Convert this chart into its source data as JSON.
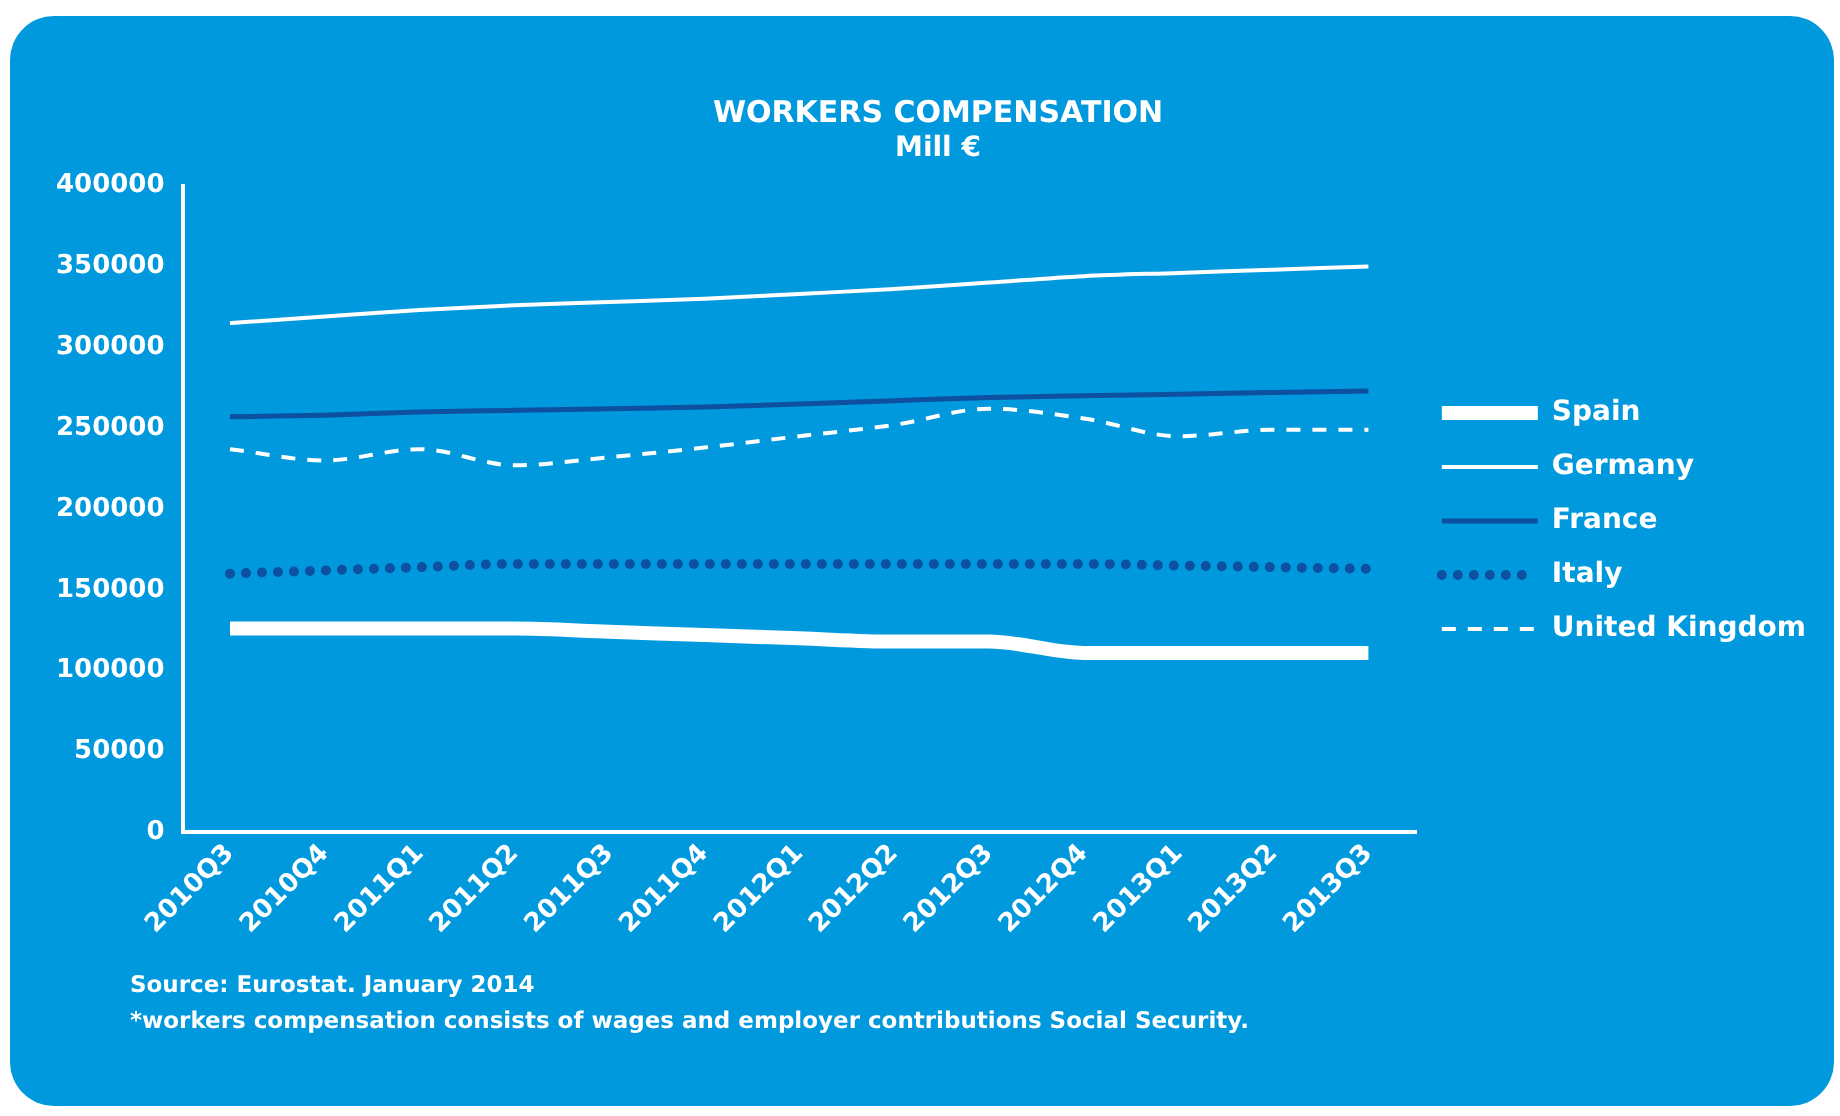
{
  "chart_data": {
    "type": "line",
    "title": "WORKERS COMPENSATION",
    "subtitle": "Mill €",
    "categories": [
      "2010Q3",
      "2010Q4",
      "2011Q1",
      "2011Q2",
      "2011Q3",
      "2011Q4",
      "2012Q1",
      "2012Q2",
      "2012Q3",
      "2012Q4",
      "2013Q1",
      "2013Q2",
      "2013Q3"
    ],
    "series": [
      {
        "name": "Spain",
        "color": "#ffffff",
        "line_style": "solid",
        "values": [
          126000,
          126000,
          126000,
          126000,
          124000,
          122000,
          120000,
          118000,
          118000,
          111000,
          111000,
          111000,
          111000
        ]
      },
      {
        "name": "Germany",
        "color": "#ffffff",
        "line_style": "solid",
        "values": [
          315000,
          319000,
          323000,
          326000,
          328000,
          330000,
          333000,
          336000,
          340000,
          344000,
          346000,
          348000,
          350000
        ]
      },
      {
        "name": "France",
        "color": "#0d4fa0",
        "line_style": "solid",
        "values": [
          257000,
          258000,
          260000,
          261000,
          262000,
          263000,
          265000,
          267000,
          269000,
          270000,
          271000,
          272000,
          273000
        ]
      },
      {
        "name": "Italy",
        "color": "#0d4fa0",
        "line_style": "dotted",
        "values": [
          160000,
          162000,
          164000,
          166000,
          166000,
          166000,
          166000,
          166000,
          166000,
          166000,
          165000,
          164000,
          163000
        ]
      },
      {
        "name": "United Kingdom",
        "color": "#ffffff",
        "line_style": "dashed",
        "values": [
          237000,
          230000,
          237000,
          227000,
          232000,
          238000,
          245000,
          252000,
          262000,
          256000,
          245000,
          249000,
          249000
        ]
      }
    ],
    "ylim": [
      0,
      400000
    ],
    "yticks": [
      0,
      50000,
      100000,
      150000,
      200000,
      250000,
      300000,
      350000,
      400000
    ],
    "grid": false,
    "legend": "right",
    "marker": "none",
    "annotations": [
      "Source: Eurostat. January 2014",
      "*workers compensation consists of wages and employer contributions Social Security."
    ]
  }
}
